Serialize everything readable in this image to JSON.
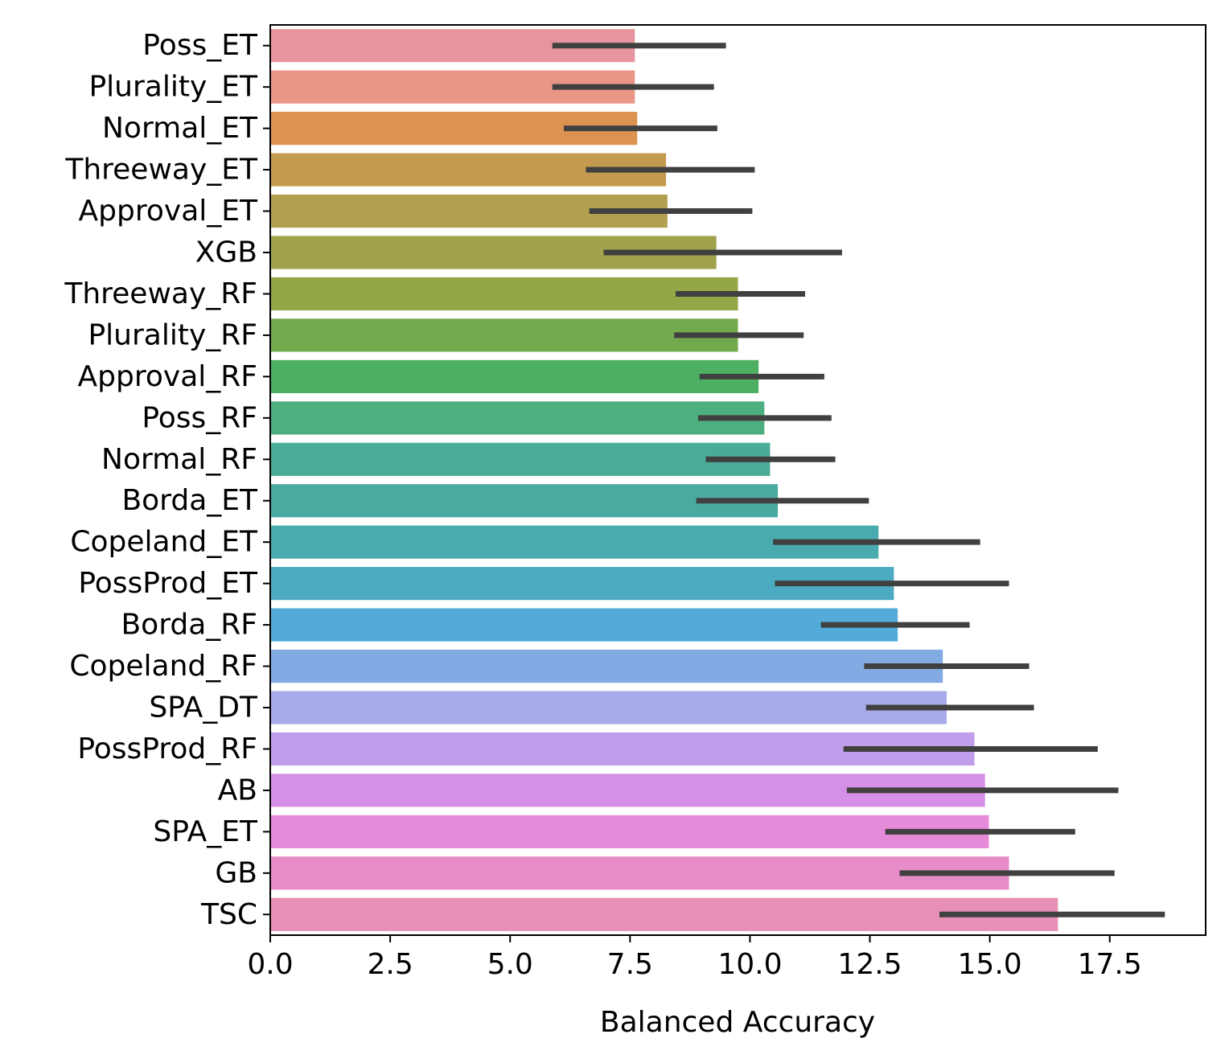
{
  "chart_data": {
    "type": "bar",
    "orientation": "horizontal",
    "title": "",
    "xlabel": "Balanced Accuracy",
    "ylabel": "",
    "xlim": [
      0,
      19.5
    ],
    "xticks": [
      "0.0",
      "2.5",
      "5.0",
      "7.5",
      "10.0",
      "12.5",
      "15.0",
      "17.5"
    ],
    "grid": false,
    "legend": "none",
    "error_bar_color": "#404040",
    "categories": [
      "Poss_ET",
      "Plurality_ET",
      "Normal_ET",
      "Threeway_ET",
      "Approval_ET",
      "XGB",
      "Threeway_RF",
      "Plurality_RF",
      "Approval_RF",
      "Poss_RF",
      "Normal_RF",
      "Borda_ET",
      "Copeland_ET",
      "PossProd_ET",
      "Borda_RF",
      "Copeland_RF",
      "SPA_DT",
      "PossProd_RF",
      "AB",
      "SPA_ET",
      "GB",
      "TSC"
    ],
    "values": [
      7.6,
      7.6,
      7.65,
      8.25,
      8.28,
      9.3,
      9.75,
      9.75,
      10.18,
      10.3,
      10.42,
      10.58,
      12.68,
      13.0,
      13.08,
      14.02,
      14.1,
      14.68,
      14.9,
      14.98,
      15.4,
      16.42
    ],
    "error_low": [
      5.88,
      5.88,
      6.12,
      6.58,
      6.65,
      6.95,
      8.45,
      8.42,
      8.95,
      8.92,
      9.08,
      8.88,
      10.48,
      10.52,
      11.48,
      12.38,
      12.42,
      11.95,
      12.02,
      12.82,
      13.12,
      13.95
    ],
    "error_high": [
      9.5,
      9.25,
      9.32,
      10.1,
      10.05,
      11.92,
      11.15,
      11.12,
      11.55,
      11.7,
      11.78,
      12.48,
      14.8,
      15.4,
      14.58,
      15.82,
      15.92,
      17.25,
      17.68,
      16.78,
      17.6,
      18.65
    ],
    "colors": [
      "#e8949f",
      "#e89686",
      "#dc9350",
      "#c49b4e",
      "#b0a050",
      "#a1a24d",
      "#93a648",
      "#73a94d",
      "#4daf62",
      "#4daf7f",
      "#4aab97",
      "#49aaa2",
      "#4aabae",
      "#4cabc1",
      "#52abd9",
      "#83abe3",
      "#a7aae8",
      "#c19eeb",
      "#d68fe6",
      "#e589d9",
      "#e68cc7",
      "#e78fb4"
    ]
  }
}
